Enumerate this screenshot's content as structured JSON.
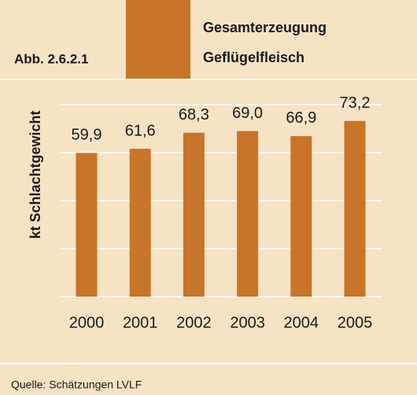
{
  "figure_label": "Abb. 2.6.2.1",
  "source": "Quelle: Schätzungen LVLF",
  "chart_data": {
    "type": "bar",
    "title_lines": [
      "Gesamterzeugung",
      "Geflügelfleisch"
    ],
    "ylabel": "kt Schlachtgewicht",
    "categories": [
      "2000",
      "2001",
      "2002",
      "2003",
      "2004",
      "2005"
    ],
    "values": [
      59.9,
      61.6,
      68.3,
      69.0,
      66.9,
      73.2
    ],
    "value_labels": [
      "59,9",
      "61,6",
      "68,3",
      "69,0",
      "66,9",
      "73,2"
    ],
    "color": "#c8742a",
    "ylim": [
      0,
      80
    ],
    "yticks": [
      0,
      20,
      40,
      60,
      80
    ],
    "grid": true
  }
}
